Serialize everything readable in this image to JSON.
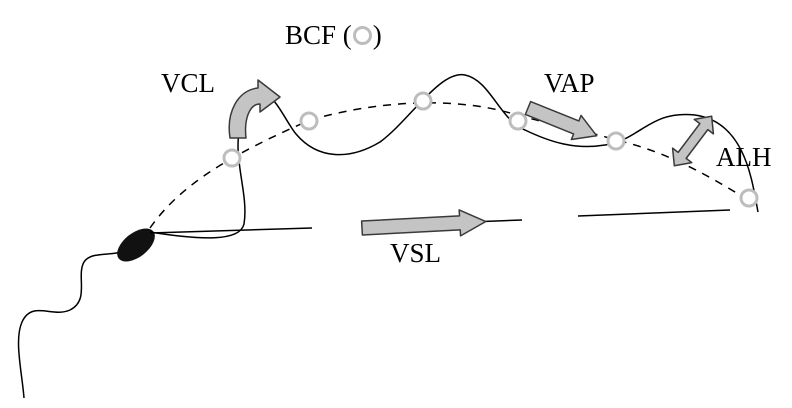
{
  "labels": {
    "bcf": "BCF",
    "bcf_open": "(",
    "bcf_close": ")",
    "vcl": "VCL",
    "vap": "VAP",
    "alh": "ALH",
    "vsl": "VSL"
  },
  "colors": {
    "line": "#000000",
    "head": "#111111",
    "arrow_fill": "#c4c4c4",
    "arrow_stroke": "#3a3a3a",
    "bcf_circle": "#bdbdbd"
  },
  "icons": {
    "bcf_point": "open-circle",
    "vcl_arrow": "curved-arrow",
    "vap_arrow": "block-arrow",
    "vsl_arrow": "block-arrow",
    "alh_arrow": "double-headed-arrow"
  }
}
